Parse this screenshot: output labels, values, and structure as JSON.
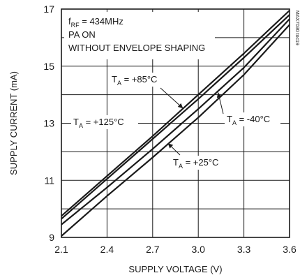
{
  "chart_data": {
    "type": "line",
    "xlabel": "SUPPLY VOLTAGE (V)",
    "ylabel": "SUPPLY CURRENT (mA)",
    "xlim": [
      2.1,
      3.6
    ],
    "ylim": [
      9,
      17
    ],
    "x_ticks": [
      "2.1",
      "2.4",
      "2.7",
      "3.0",
      "3.3",
      "3.6"
    ],
    "y_ticks": [
      "9",
      "11",
      "13",
      "15",
      "17"
    ],
    "grid": true,
    "conditions": [
      {
        "main": "f",
        "sub": "RF",
        "rest": " = 434MHz"
      },
      {
        "main": "PA ON",
        "sub": "",
        "rest": ""
      },
      {
        "main": "WITHOUT ENVELOPE SHAPING",
        "sub": "",
        "rest": ""
      }
    ],
    "credit": "MAX7030 toc19",
    "series": [
      {
        "label_main": "T",
        "label_sub": "A",
        "label_rest": " = +85°C",
        "x": [
          2.1,
          2.4,
          2.7,
          3.0,
          3.3,
          3.6
        ],
        "y": [
          9.75,
          11.15,
          12.55,
          14.0,
          15.45,
          16.95
        ]
      },
      {
        "label_main": "T",
        "label_sub": "A",
        "label_rest": " = +125°C",
        "x": [
          2.1,
          2.4,
          2.7,
          3.0,
          3.3,
          3.6
        ],
        "y": [
          9.65,
          11.05,
          12.45,
          13.85,
          15.3,
          16.8
        ]
      },
      {
        "label_main": "T",
        "label_sub": "A",
        "label_rest": " = -40°C",
        "x": [
          2.1,
          2.4,
          2.7,
          3.0,
          3.3,
          3.6
        ],
        "y": [
          9.45,
          10.75,
          12.1,
          13.5,
          14.95,
          16.65
        ]
      },
      {
        "label_main": "T",
        "label_sub": "A",
        "label_rest": " = +25°C",
        "x": [
          2.1,
          2.4,
          2.7,
          3.0,
          3.3,
          3.6
        ],
        "y": [
          9.05,
          10.45,
          11.8,
          13.2,
          14.7,
          16.45
        ]
      }
    ]
  }
}
